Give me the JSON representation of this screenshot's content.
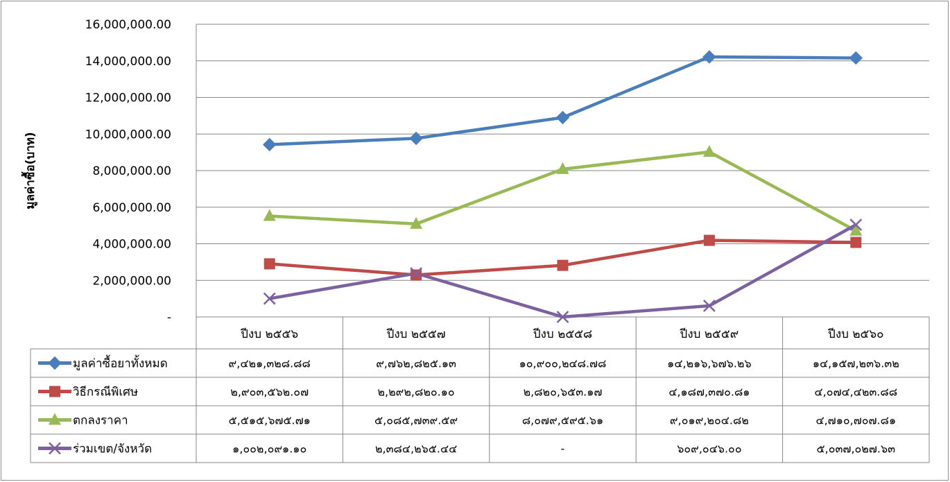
{
  "chart_data": {
    "type": "line",
    "ylabel": "มูลค่าซื้อ(บาท)",
    "ylim": [
      0,
      16000000
    ],
    "yticks": [
      {
        "value": 0,
        "label": "-"
      },
      {
        "value": 2000000,
        "label": "2,000,000.00"
      },
      {
        "value": 4000000,
        "label": "4,000,000.00"
      },
      {
        "value": 6000000,
        "label": "6,000,000.00"
      },
      {
        "value": 8000000,
        "label": "8,000,000.00"
      },
      {
        "value": 10000000,
        "label": "10,000,000.00"
      },
      {
        "value": 12000000,
        "label": "12,000,000.00"
      },
      {
        "value": 14000000,
        "label": "14,000,000.00"
      },
      {
        "value": 16000000,
        "label": "16,000,000.00"
      }
    ],
    "grid": true,
    "legend": "data-table",
    "categories": [
      "ปีงบ ๒๕๕๖",
      "ปีงบ ๒๕๕๗",
      "ปีงบ ๒๕๕๘",
      "ปีงบ ๒๕๕๙",
      "ปีงบ ๒๕๖๐"
    ],
    "series": [
      {
        "name": "มูลค่าซื้อยาทั้งหมด",
        "color": "#4a7ebb",
        "marker": "diamond",
        "values": [
          9421328.88,
          9762825.13,
          10900248.78,
          14216676.26,
          14157236.32
        ],
        "labels": [
          "๙,๔๒๑,๓๒๘.๘๘",
          "๙,๗๖๒,๘๒๕.๑๓",
          "๑๐,๙๐๐,๒๔๘.๗๘",
          "๑๔,๒๑๖,๖๗๖.๒๖",
          "๑๔,๑๕๗,๒๓๖.๓๒"
        ]
      },
      {
        "name": "วิธีกรณีพิเศษ",
        "color": "#be4b48",
        "marker": "square",
        "values": [
          2903562.07,
          2292820.1,
          2820653.17,
          4187370.81,
          4074423.88
        ],
        "labels": [
          "๒,๙๐๓,๕๖๒.๐๗",
          "๒,๒๙๒,๘๒๐.๑๐",
          "๒,๘๒๐,๖๕๓.๑๗",
          "๔,๑๘๗,๓๗๐.๘๑",
          "๔,๐๗๔,๔๒๓.๘๘"
        ]
      },
      {
        "name": "ตกลงราคา",
        "color": "#98b954",
        "marker": "triangle",
        "values": [
          5515675.71,
          5085739.59,
          8079595.61,
          9019204.82,
          4710707.81
        ],
        "labels": [
          "๕,๕๑๕,๖๗๕.๗๑",
          "๕,๐๘๕,๗๓๙.๕๙",
          "๘,๐๗๙,๕๙๕.๖๑",
          "๙,๐๑๙,๒๐๔.๘๒",
          "๔,๗๑๐,๗๐๗.๘๑"
        ]
      },
      {
        "name": "ร่วมเขต/จังหวัด",
        "color": "#7d60a0",
        "marker": "x",
        "values": [
          1002091.1,
          2384265.44,
          0,
          609046.0,
          5037027.63
        ],
        "labels": [
          "๑,๐๐๒,๐๙๑.๑๐",
          "๒,๓๘๔,๒๖๕.๔๔",
          "-",
          "๖๐๙,๐๔๖.๐๐",
          "๕,๐๓๗,๐๒๗.๖๓"
        ]
      }
    ]
  }
}
